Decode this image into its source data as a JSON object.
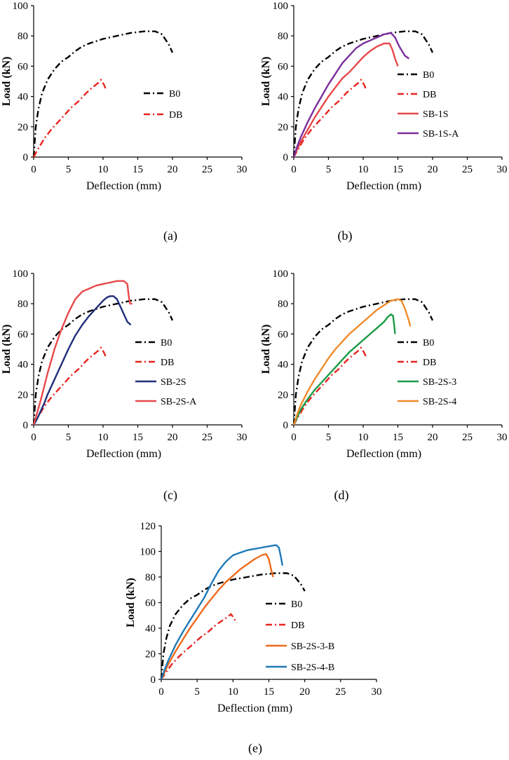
{
  "chart_data": [
    {
      "panel": "a",
      "caption": "(a)",
      "type": "line",
      "xlabel": "Deflection (mm)",
      "ylabel": "Load (kN)",
      "xlim": [
        0,
        30
      ],
      "ylim": [
        0,
        100
      ],
      "xticks": [
        "0",
        "5",
        "10",
        "15",
        "20",
        "25",
        "30"
      ],
      "yticks": [
        "0",
        "20",
        "40",
        "60",
        "80",
        "100"
      ],
      "legend_position": "right",
      "series": [
        {
          "name": "B0",
          "color": "#000000",
          "dash": "dashdot",
          "x": [
            0,
            0.3,
            0.7,
            1.2,
            2,
            3,
            4,
            5,
            6,
            7,
            8,
            10,
            12,
            14,
            16,
            17.5,
            18.5,
            19.5,
            20
          ],
          "y": [
            0,
            20,
            32,
            42,
            51,
            58,
            63,
            66,
            70,
            73,
            75,
            78,
            80,
            82,
            83,
            83,
            81,
            74,
            69
          ]
        },
        {
          "name": "DB",
          "color": "#e8231f",
          "dash": "dashdot",
          "x": [
            0,
            0.6,
            1.5,
            2.5,
            3.5,
            4.5,
            5.5,
            6.5,
            7.5,
            8.5,
            9.3,
            9.7,
            10.1,
            10.5
          ],
          "y": [
            0,
            5,
            12,
            18,
            23,
            28,
            33,
            37,
            42,
            46,
            49,
            51,
            48,
            44
          ]
        }
      ]
    },
    {
      "panel": "b",
      "caption": "(b)",
      "type": "line",
      "xlabel": "Deflection (mm)",
      "ylabel": "Load (kN)",
      "xlim": [
        0,
        30
      ],
      "ylim": [
        0,
        100
      ],
      "xticks": [
        "0",
        "5",
        "10",
        "15",
        "20",
        "25",
        "30"
      ],
      "yticks": [
        "0",
        "20",
        "40",
        "60",
        "80",
        "100"
      ],
      "legend_position": "right",
      "series": [
        {
          "name": "B0",
          "color": "#000000",
          "dash": "dashdot",
          "x": [
            0,
            0.3,
            0.7,
            1.2,
            2,
            3,
            4,
            5,
            6,
            7,
            8,
            10,
            12,
            14,
            16,
            17.5,
            18.5,
            19.5,
            20
          ],
          "y": [
            0,
            20,
            32,
            42,
            51,
            58,
            63,
            66,
            70,
            73,
            75,
            78,
            80,
            82,
            83,
            83,
            81,
            74,
            69
          ]
        },
        {
          "name": "DB",
          "color": "#e8231f",
          "dash": "dashdot",
          "x": [
            0,
            0.6,
            1.5,
            2.5,
            3.5,
            4.5,
            5.5,
            6.5,
            7.5,
            8.5,
            9.3,
            9.7,
            10.1,
            10.5
          ],
          "y": [
            0,
            5,
            12,
            18,
            23,
            28,
            33,
            37,
            42,
            46,
            49,
            51,
            48,
            44
          ]
        },
        {
          "name": "SB-1S",
          "color": "#e8484a",
          "dash": "solid",
          "x": [
            0,
            0.5,
            1,
            2,
            3,
            4,
            5,
            6,
            7,
            8,
            9,
            10,
            11,
            12,
            13,
            13.8,
            14.2,
            14.6,
            15
          ],
          "y": [
            0,
            5,
            10,
            18,
            26,
            33,
            40,
            46,
            52,
            56,
            61,
            66,
            70,
            73,
            75,
            75,
            71,
            65,
            60
          ]
        },
        {
          "name": "SB-1S-A",
          "color": "#7b2d9c",
          "dash": "solid",
          "x": [
            0,
            0.5,
            1,
            2,
            3,
            4,
            5,
            6,
            7,
            8,
            9,
            10,
            11,
            12,
            13,
            14,
            14.6,
            15.2,
            16,
            16.6
          ],
          "y": [
            0,
            7,
            13,
            23,
            32,
            40,
            48,
            55,
            62,
            67,
            72,
            75,
            77,
            79,
            81,
            82,
            79,
            73,
            67,
            65
          ]
        }
      ]
    },
    {
      "panel": "c",
      "caption": "(c)",
      "type": "line",
      "xlabel": "Deflection (mm)",
      "ylabel": "Load (kN)",
      "xlim": [
        0,
        30
      ],
      "ylim": [
        0,
        100
      ],
      "xticks": [
        "0",
        "5",
        "10",
        "15",
        "20",
        "25",
        "30"
      ],
      "yticks": [
        "0",
        "20",
        "40",
        "60",
        "80",
        "100"
      ],
      "legend_position": "right",
      "series": [
        {
          "name": "B0",
          "color": "#000000",
          "dash": "dashdot",
          "x": [
            0,
            0.3,
            0.7,
            1.2,
            2,
            3,
            4,
            5,
            6,
            7,
            8,
            10,
            12,
            14,
            16,
            17.5,
            18.5,
            19.5,
            20
          ],
          "y": [
            0,
            20,
            32,
            42,
            51,
            58,
            63,
            66,
            70,
            73,
            75,
            78,
            80,
            82,
            83,
            83,
            81,
            74,
            69
          ]
        },
        {
          "name": "DB",
          "color": "#e8231f",
          "dash": "dashdot",
          "x": [
            0,
            0.6,
            1.5,
            2.5,
            3.5,
            4.5,
            5.5,
            6.5,
            7.5,
            8.5,
            9.3,
            9.7,
            10.1,
            10.5
          ],
          "y": [
            0,
            5,
            12,
            18,
            23,
            28,
            33,
            37,
            42,
            46,
            49,
            51,
            48,
            44
          ]
        },
        {
          "name": "SB-2S",
          "color": "#1f2d7a",
          "dash": "solid",
          "x": [
            0,
            0.5,
            1,
            1.5,
            2,
            3,
            4,
            5,
            6,
            7,
            8,
            9,
            10,
            10.5,
            11,
            11.5,
            12,
            12.5,
            13,
            13.5,
            14
          ],
          "y": [
            0,
            4,
            9,
            14,
            20,
            30,
            40,
            50,
            59,
            66,
            72,
            77,
            82,
            84,
            85,
            85,
            83,
            78,
            73,
            68,
            66
          ]
        },
        {
          "name": "SB-2S-A",
          "color": "#e8484a",
          "dash": "solid",
          "x": [
            0,
            0.5,
            1,
            1.5,
            2,
            3,
            4,
            5,
            6,
            7,
            8,
            9,
            10,
            11,
            12,
            13,
            13.5,
            13.7,
            13.9,
            14.2
          ],
          "y": [
            0,
            8,
            16,
            25,
            34,
            50,
            63,
            74,
            83,
            88,
            90,
            92,
            93,
            94,
            95,
            95,
            93,
            85,
            80,
            80
          ]
        }
      ]
    },
    {
      "panel": "d",
      "caption": "(d)",
      "type": "line",
      "xlabel": "Deflection (mm)",
      "ylabel": "Load (kN)",
      "xlim": [
        0,
        30
      ],
      "ylim": [
        0,
        100
      ],
      "xticks": [
        "0",
        "5",
        "10",
        "15",
        "20",
        "25",
        "30"
      ],
      "yticks": [
        "0",
        "20",
        "40",
        "60",
        "80",
        "100"
      ],
      "legend_position": "right",
      "series": [
        {
          "name": "B0",
          "color": "#000000",
          "dash": "dashdot",
          "x": [
            0,
            0.3,
            0.7,
            1.2,
            2,
            3,
            4,
            5,
            6,
            7,
            8,
            10,
            12,
            14,
            16,
            17.5,
            18.5,
            19.5,
            20
          ],
          "y": [
            0,
            20,
            32,
            42,
            51,
            58,
            63,
            66,
            70,
            73,
            75,
            78,
            80,
            82,
            83,
            83,
            81,
            74,
            69
          ]
        },
        {
          "name": "DB",
          "color": "#e8231f",
          "dash": "dashdot",
          "x": [
            0,
            0.6,
            1.5,
            2.5,
            3.5,
            4.5,
            5.5,
            6.5,
            7.5,
            8.5,
            9.3,
            9.7,
            10.1,
            10.5
          ],
          "y": [
            0,
            5,
            12,
            18,
            23,
            28,
            33,
            37,
            42,
            46,
            49,
            51,
            48,
            44
          ]
        },
        {
          "name": "SB-2S-3",
          "color": "#1a9a44",
          "dash": "solid",
          "x": [
            0,
            0.5,
            1,
            2,
            3,
            4,
            5,
            6,
            7,
            8,
            9,
            10,
            11,
            12,
            13,
            13.5,
            14,
            14.3,
            14.5,
            14.6
          ],
          "y": [
            0,
            5,
            10,
            17,
            23,
            28,
            33,
            38,
            43,
            48,
            52,
            56,
            60,
            64,
            68,
            71,
            73,
            72,
            65,
            60
          ]
        },
        {
          "name": "SB-2S-4",
          "color": "#f08a2b",
          "dash": "solid",
          "x": [
            0,
            0.5,
            1,
            2,
            3,
            4,
            5,
            6,
            7,
            8,
            9,
            10,
            11,
            12,
            13,
            14,
            15,
            15.5,
            16,
            16.5,
            16.8
          ],
          "y": [
            0,
            7,
            13,
            22,
            30,
            37,
            44,
            50,
            55,
            60,
            64,
            68,
            72,
            76,
            79,
            82,
            83,
            82,
            77,
            70,
            65
          ]
        }
      ]
    },
    {
      "panel": "e",
      "caption": "(e)",
      "type": "line",
      "xlabel": "Deflection (mm)",
      "ylabel": "Load (kN)",
      "xlim": [
        0,
        30
      ],
      "ylim": [
        0,
        120
      ],
      "xticks": [
        "0",
        "5",
        "10",
        "15",
        "20",
        "25",
        "30"
      ],
      "yticks": [
        "0",
        "20",
        "40",
        "60",
        "80",
        "100",
        "120"
      ],
      "legend_position": "right",
      "series": [
        {
          "name": "B0",
          "color": "#000000",
          "dash": "dashdot",
          "x": [
            0,
            0.3,
            0.7,
            1.2,
            2,
            3,
            4,
            5,
            6,
            7,
            8,
            10,
            12,
            14,
            16,
            17.5,
            18.5,
            19.5,
            20
          ],
          "y": [
            0,
            20,
            32,
            42,
            51,
            58,
            63,
            66,
            70,
            73,
            75,
            78,
            80,
            82,
            83,
            83,
            81,
            74,
            69
          ]
        },
        {
          "name": "DB",
          "color": "#e8231f",
          "dash": "dashdot",
          "x": [
            0,
            0.6,
            1.5,
            2.5,
            3.5,
            4.5,
            5.5,
            6.5,
            7.5,
            8.5,
            9.3,
            9.7,
            10.1,
            10.5
          ],
          "y": [
            0,
            5,
            12,
            18,
            23,
            28,
            33,
            37,
            42,
            46,
            49,
            51,
            48,
            44
          ]
        },
        {
          "name": "SB-2S-3-B",
          "color": "#f06a1a",
          "dash": "solid",
          "x": [
            0,
            0.5,
            1,
            2,
            3,
            4,
            5,
            6,
            7,
            8,
            9,
            10,
            11,
            12,
            13,
            14,
            14.6,
            15,
            15.3,
            15.6
          ],
          "y": [
            0,
            6,
            12,
            22,
            31,
            40,
            48,
            56,
            63,
            70,
            76,
            81,
            86,
            90,
            94,
            97,
            98,
            94,
            86,
            80
          ]
        },
        {
          "name": "SB-2S-4-B",
          "color": "#1f7ab8",
          "dash": "solid",
          "x": [
            0,
            0.5,
            1,
            2,
            3,
            4,
            5,
            6,
            7,
            8,
            9,
            10,
            11,
            12,
            13,
            14,
            15,
            16,
            16.4,
            16.7,
            16.9
          ],
          "y": [
            0,
            8,
            15,
            27,
            37,
            46,
            55,
            64,
            75,
            85,
            92,
            97,
            99,
            101,
            102,
            103,
            104,
            105,
            103,
            95,
            89
          ]
        }
      ]
    }
  ]
}
